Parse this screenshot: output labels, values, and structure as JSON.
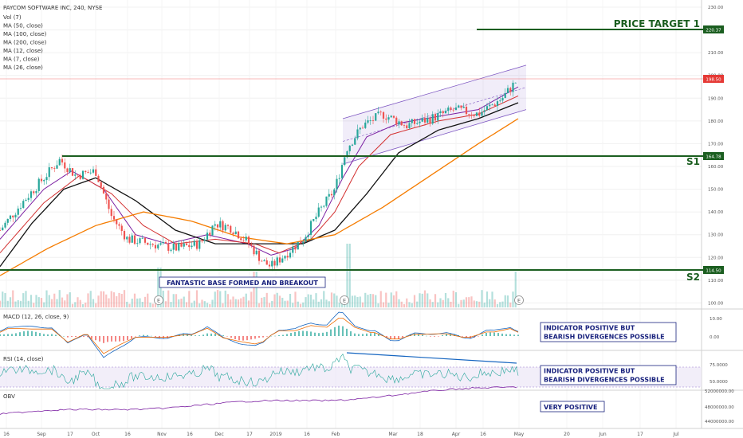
{
  "header": {
    "title": "PAYCOM SOFTWARE INC, 240, NYSE",
    "indicators": [
      "Vol (7)",
      "MA (50, close)",
      "MA (100, close)",
      "MA (200, close)",
      "MA (12, close)",
      "MA (7, close)",
      "MA (26, close)"
    ]
  },
  "panels": {
    "macd_label": "MACD (12, 26, close, 9)",
    "rsi_label": "RSI (14, close)",
    "obv_label": "OBV"
  },
  "annotations": {
    "price_target": "PRICE TARGET 1",
    "s1": "S1",
    "s2": "S2",
    "base_note": "FANTASTIC BASE FORMED AND BREAKOUT",
    "macd_note_1": "INDICATOR POSITIVE BUT",
    "macd_note_2": "BEARISH DIVERGENCES POSSIBLE",
    "rsi_note_1": "INDICATOR POSITIVE BUT",
    "rsi_note_2": "BEARISH DIVERGENCES POSSIBLE",
    "obv_note": "VERY POSITIVE",
    "earnings_marker": "E"
  },
  "price_tags": {
    "target": "220.37",
    "last": "198.50",
    "s1": "164.78",
    "s2": "114.50"
  },
  "colors": {
    "candle_up": "#26a69a",
    "candle_down": "#ef5350",
    "support_line": "#1b5e20",
    "ma_black": "#111111",
    "ma_orange": "#f57c00",
    "ma_red": "#d32f2f",
    "ma_purple": "#7b1fa2",
    "channel": "#7e57c2",
    "annotation_text": "#1a237e"
  },
  "chart_data": {
    "type": "candlestick",
    "title": "PAYCOM SOFTWARE INC, 240, NYSE",
    "price_axis_ticks": [
      "230.00",
      "220.00",
      "210.00",
      "200.00",
      "190.00",
      "180.00",
      "170.00",
      "160.00",
      "150.00",
      "140.00",
      "130.00",
      "120.00",
      "110.00",
      "100.00"
    ],
    "price_range": [
      97,
      234
    ],
    "x_ticks": [
      "16",
      "Sep",
      "17",
      "Oct",
      "16",
      "Nov",
      "16",
      "Dec",
      "17",
      "2019",
      "16",
      "Feb",
      "Mar",
      "18",
      "Apr",
      "16",
      "May",
      "20",
      "Jun",
      "17",
      "Jul"
    ],
    "levels": {
      "price_target_1": 220.37,
      "last_price": 198.5,
      "s1": 164.78,
      "s2": 114.5
    },
    "close_path": [
      {
        "t": 0.0,
        "price": 132
      },
      {
        "t": 3.0,
        "price": 145
      },
      {
        "t": 5.5,
        "price": 155
      },
      {
        "t": 7.5,
        "price": 163
      },
      {
        "t": 9.5,
        "price": 156
      },
      {
        "t": 12.0,
        "price": 158
      },
      {
        "t": 14.0,
        "price": 138
      },
      {
        "t": 16.0,
        "price": 128
      },
      {
        "t": 19.0,
        "price": 126
      },
      {
        "t": 22.0,
        "price": 124
      },
      {
        "t": 25.0,
        "price": 126
      },
      {
        "t": 27.0,
        "price": 135
      },
      {
        "t": 29.0,
        "price": 133
      },
      {
        "t": 31.0,
        "price": 127
      },
      {
        "t": 33.0,
        "price": 118
      },
      {
        "t": 34.0,
        "price": 116
      },
      {
        "t": 36.0,
        "price": 122
      },
      {
        "t": 38.0,
        "price": 128
      },
      {
        "t": 40.0,
        "price": 140
      },
      {
        "t": 42.0,
        "price": 150
      },
      {
        "t": 43.5,
        "price": 168
      },
      {
        "t": 45.5,
        "price": 178
      },
      {
        "t": 48.0,
        "price": 183
      },
      {
        "t": 51.0,
        "price": 178
      },
      {
        "t": 54.0,
        "price": 181
      },
      {
        "t": 57.0,
        "price": 185
      },
      {
        "t": 60.0,
        "price": 183
      },
      {
        "t": 63.0,
        "price": 190
      },
      {
        "t": 65.0,
        "price": 198.5
      }
    ],
    "series": [
      {
        "name": "MA (12, close)",
        "values": [
          {
            "t": 0.0,
            "price": 128
          },
          {
            "t": 5.5,
            "price": 150
          },
          {
            "t": 9.0,
            "price": 158
          },
          {
            "t": 13.0,
            "price": 150
          },
          {
            "t": 17.0,
            "price": 130
          },
          {
            "t": 21.0,
            "price": 126
          },
          {
            "t": 26.0,
            "price": 130
          },
          {
            "t": 31.0,
            "price": 126
          },
          {
            "t": 34.0,
            "price": 121
          },
          {
            "t": 37.0,
            "price": 124
          },
          {
            "t": 40.0,
            "price": 134
          },
          {
            "t": 43.0,
            "price": 155
          },
          {
            "t": 46.0,
            "price": 173
          },
          {
            "t": 50.0,
            "price": 179
          },
          {
            "t": 55.0,
            "price": 182
          },
          {
            "t": 60.0,
            "price": 185
          },
          {
            "t": 65.0,
            "price": 195
          }
        ]
      },
      {
        "name": "MA (26, close)",
        "values": [
          {
            "t": 0.0,
            "price": 122
          },
          {
            "t": 5.5,
            "price": 144
          },
          {
            "t": 10.0,
            "price": 156
          },
          {
            "t": 14.0,
            "price": 148
          },
          {
            "t": 18.0,
            "price": 134
          },
          {
            "t": 22.0,
            "price": 126
          },
          {
            "t": 27.0,
            "price": 128
          },
          {
            "t": 32.0,
            "price": 126
          },
          {
            "t": 35.0,
            "price": 122
          },
          {
            "t": 39.0,
            "price": 128
          },
          {
            "t": 42.0,
            "price": 140
          },
          {
            "t": 45.0,
            "price": 160
          },
          {
            "t": 49.0,
            "price": 174
          },
          {
            "t": 55.0,
            "price": 180
          },
          {
            "t": 60.0,
            "price": 183
          },
          {
            "t": 65.0,
            "price": 191
          }
        ]
      },
      {
        "name": "MA (50, close)",
        "values": [
          {
            "t": 0.0,
            "price": 116
          },
          {
            "t": 4.0,
            "price": 135
          },
          {
            "t": 8.0,
            "price": 150
          },
          {
            "t": 12.0,
            "price": 155
          },
          {
            "t": 17.0,
            "price": 145
          },
          {
            "t": 22.0,
            "price": 132
          },
          {
            "t": 27.0,
            "price": 126
          },
          {
            "t": 33.0,
            "price": 126
          },
          {
            "t": 38.0,
            "price": 126
          },
          {
            "t": 42.0,
            "price": 132
          },
          {
            "t": 46.0,
            "price": 148
          },
          {
            "t": 50.0,
            "price": 166
          },
          {
            "t": 55.0,
            "price": 176
          },
          {
            "t": 60.0,
            "price": 181
          },
          {
            "t": 65.0,
            "price": 188
          }
        ]
      },
      {
        "name": "MA (100, close)",
        "values": [
          {
            "t": 0.0,
            "price": 112
          },
          {
            "t": 6.0,
            "price": 124
          },
          {
            "t": 12.0,
            "price": 134
          },
          {
            "t": 18.0,
            "price": 140
          },
          {
            "t": 24.0,
            "price": 136
          },
          {
            "t": 30.0,
            "price": 129
          },
          {
            "t": 36.0,
            "price": 126
          },
          {
            "t": 42.0,
            "price": 130
          },
          {
            "t": 48.0,
            "price": 142
          },
          {
            "t": 54.0,
            "price": 156
          },
          {
            "t": 60.0,
            "price": 170
          },
          {
            "t": 65.0,
            "price": 181
          }
        ]
      }
    ],
    "channel": {
      "upper": [
        {
          "t": 43.0,
          "price": 181
        },
        {
          "t": 66.0,
          "price": 204.5
        }
      ],
      "lower": [
        {
          "t": 43.0,
          "price": 161
        },
        {
          "t": 66.0,
          "price": 185
        }
      ]
    },
    "rsi_divergence_line": true
  }
}
